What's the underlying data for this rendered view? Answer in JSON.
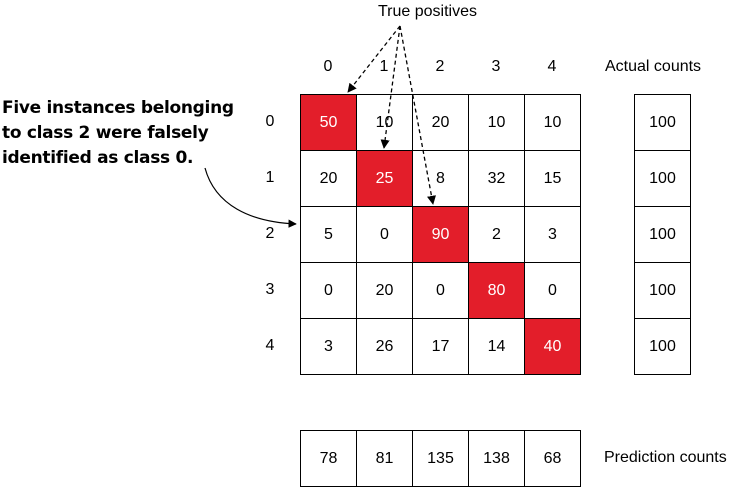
{
  "header": {
    "true_positives_label": "True positives"
  },
  "annotation": {
    "line1": "Five instances belonging",
    "line2": "to class 2 were falsely",
    "line3": "identified as class 0."
  },
  "matrix": {
    "col_labels": [
      "0",
      "1",
      "2",
      "3",
      "4"
    ],
    "row_labels": [
      "0",
      "1",
      "2",
      "3",
      "4"
    ],
    "rows": [
      [
        "50",
        "10",
        "20",
        "10",
        "10"
      ],
      [
        "20",
        "25",
        "8",
        "32",
        "15"
      ],
      [
        "5",
        "0",
        "90",
        "2",
        "3"
      ],
      [
        "0",
        "20",
        "0",
        "80",
        "0"
      ],
      [
        "3",
        "26",
        "17",
        "14",
        "40"
      ]
    ]
  },
  "actual": {
    "title": "Actual counts",
    "values": [
      "100",
      "100",
      "100",
      "100",
      "100"
    ]
  },
  "prediction": {
    "title": "Prediction counts",
    "values": [
      "78",
      "81",
      "135",
      "138",
      "68"
    ]
  },
  "colors": {
    "diagonal_fill": "#e31e2a",
    "border": "#000000"
  }
}
